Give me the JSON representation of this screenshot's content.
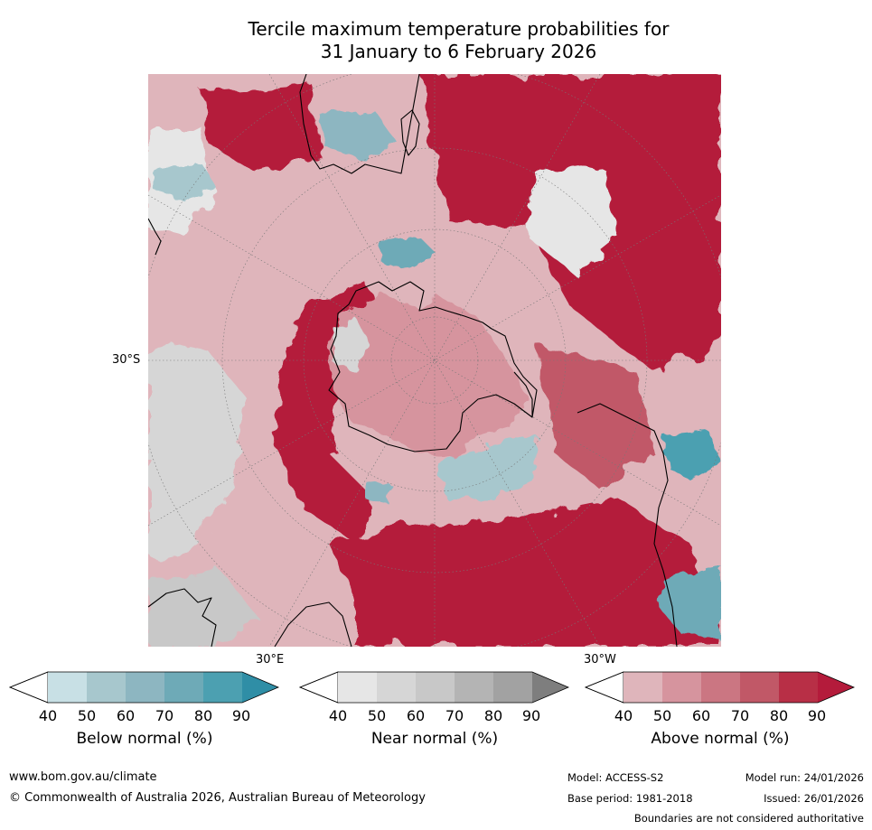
{
  "title": {
    "line1": "Tercile maximum temperature probabilities for",
    "line2": "31 January to 6 February 2026"
  },
  "map": {
    "projection": "south polar stereographic",
    "lat_label": "30°S",
    "lon_labels": [
      "30°E",
      "30°W"
    ],
    "colors": {
      "above": [
        "#dfb5bb",
        "#d6949e",
        "#cb7682",
        "#c15867",
        "#b82f46",
        "#b41b3b"
      ],
      "near": [
        "#e6e6e6",
        "#d6d6d6",
        "#c8c8c8",
        "#b4b4b4",
        "#a2a2a2",
        "#7e7e7e"
      ],
      "below": [
        "#c8e0e5",
        "#a7c7cd",
        "#8db6c1",
        "#6eaab7",
        "#4ca0b1",
        "#2f8ea6"
      ],
      "land_outline": "#000000"
    }
  },
  "colorbars": [
    {
      "label": "Below normal (%)",
      "ticks": [
        "40",
        "50",
        "60",
        "70",
        "80",
        "90"
      ],
      "colors": [
        "#ffffff",
        "#c8e0e5",
        "#a7c7cd",
        "#8db6c1",
        "#6eaab7",
        "#4ca0b1",
        "#2f8ea6"
      ]
    },
    {
      "label": "Near normal (%)",
      "ticks": [
        "40",
        "50",
        "60",
        "70",
        "80",
        "90"
      ],
      "colors": [
        "#ffffff",
        "#e6e6e6",
        "#d6d6d6",
        "#c8c8c8",
        "#b4b4b4",
        "#a2a2a2",
        "#7e7e7e"
      ]
    },
    {
      "label": "Above normal (%)",
      "ticks": [
        "40",
        "50",
        "60",
        "70",
        "80",
        "90"
      ],
      "colors": [
        "#ffffff",
        "#dfb5bb",
        "#d6949e",
        "#cb7682",
        "#c15867",
        "#b82f46",
        "#b41b3b"
      ]
    }
  ],
  "footer": {
    "website": "www.bom.gov.au/climate",
    "copyright": "© Commonwealth of Australia 2026, Australian Bureau of Meteorology",
    "model": "Model: ACCESS-S2",
    "model_run": "Model run: 24/01/2026",
    "base_period": "Base period: 1981-2018",
    "issued": "Issued: 26/01/2026",
    "disclaimer": "Boundaries are not considered authoritative"
  }
}
